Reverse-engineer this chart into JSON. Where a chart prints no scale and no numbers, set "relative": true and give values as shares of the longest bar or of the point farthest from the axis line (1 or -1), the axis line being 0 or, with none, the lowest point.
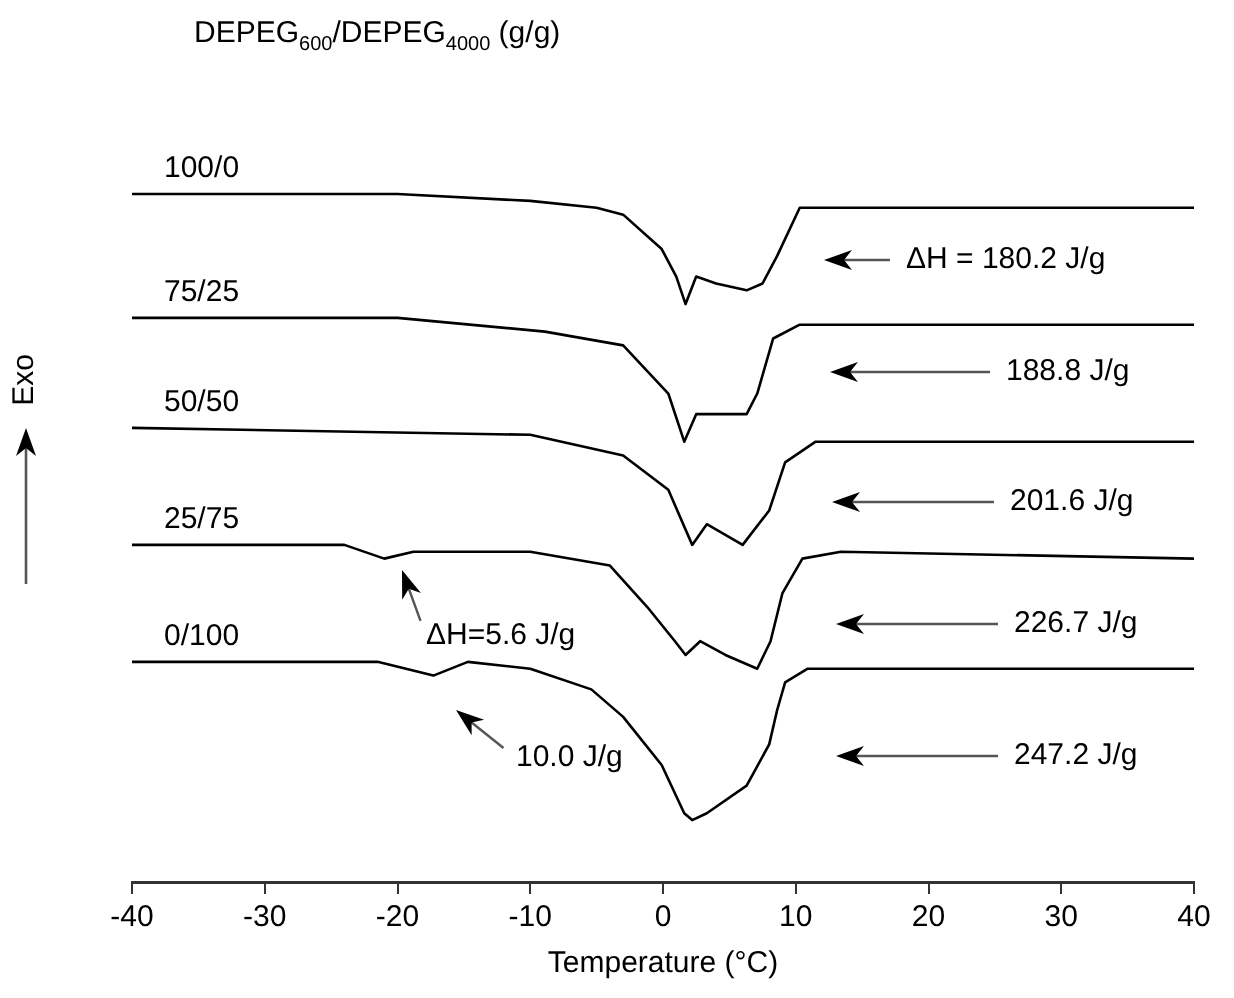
{
  "chart_data": {
    "type": "line",
    "relative": true,
    "legend_title": "DEPEG$_{600}$/DEPEG$_{4000}$ (g/g)",
    "xlabel": "Temperature (°C)",
    "ylabel": "Exo",
    "marker": "none",
    "xlim": [
      -40,
      40
    ],
    "xticks": [
      -40,
      -30,
      -20,
      -10,
      0,
      10,
      20,
      30,
      40
    ],
    "series": [
      {
        "name": "100/0",
        "color": "#000000",
        "x": [
          -40,
          -20,
          -10,
          -5,
          -3,
          -0.1,
          1,
          1.7,
          2.5,
          4,
          6.3,
          7.5,
          8.6,
          10.3,
          13.2,
          40
        ],
        "values": [
          1.0,
          1.0,
          0.99,
          0.98,
          0.97,
          0.92,
          0.88,
          0.84,
          0.88,
          0.87,
          0.86,
          0.87,
          0.91,
          0.98,
          0.98,
          0.98
        ]
      },
      {
        "name": "75/25",
        "color": "#000000",
        "x": [
          -40,
          -20,
          -8.9,
          -3,
          0.4,
          1.6,
          2.5,
          6.3,
          7.1,
          8.3,
          10.3,
          40
        ],
        "values": [
          0.82,
          0.82,
          0.8,
          0.78,
          0.71,
          0.64,
          0.68,
          0.68,
          0.71,
          0.79,
          0.81,
          0.81
        ]
      },
      {
        "name": "50/50",
        "color": "#000000",
        "x": [
          -40,
          -10,
          -3,
          0.4,
          2.2,
          3.3,
          6,
          8,
          9.2,
          11.5,
          40
        ],
        "values": [
          0.66,
          0.65,
          0.62,
          0.57,
          0.49,
          0.52,
          0.49,
          0.54,
          0.61,
          0.64,
          0.64
        ]
      },
      {
        "name": "25/75",
        "color": "#000000",
        "x": [
          -40,
          -24,
          -21,
          -18.8,
          -10,
          -4,
          -1.2,
          0.9,
          1.7,
          2.8,
          4.7,
          7.1,
          8.1,
          9,
          10.5,
          13.4,
          40
        ],
        "values": [
          0.49,
          0.49,
          0.47,
          0.48,
          0.48,
          0.46,
          0.4,
          0.35,
          0.33,
          0.35,
          0.33,
          0.31,
          0.35,
          0.42,
          0.47,
          0.48,
          0.47
        ]
      },
      {
        "name": "0/100",
        "color": "#000000",
        "x": [
          -40,
          -21.5,
          -17.3,
          -14.7,
          -10,
          -5.4,
          -3,
          -0.1,
          1.6,
          2.2,
          3.3,
          6.3,
          8,
          8.6,
          9.2,
          10.9,
          40
        ],
        "values": [
          0.32,
          0.32,
          0.3,
          0.32,
          0.31,
          0.28,
          0.24,
          0.17,
          0.1,
          0.09,
          0.1,
          0.14,
          0.2,
          0.25,
          0.29,
          0.31,
          0.31
        ]
      }
    ],
    "annotations": [
      "ΔH = 180.2 J/g",
      "188.8 J/g",
      "201.6 J/g",
      "226.7 J/g",
      "247.2 J/g",
      "ΔH=5.6 J/g",
      "10.0 J/g"
    ]
  }
}
